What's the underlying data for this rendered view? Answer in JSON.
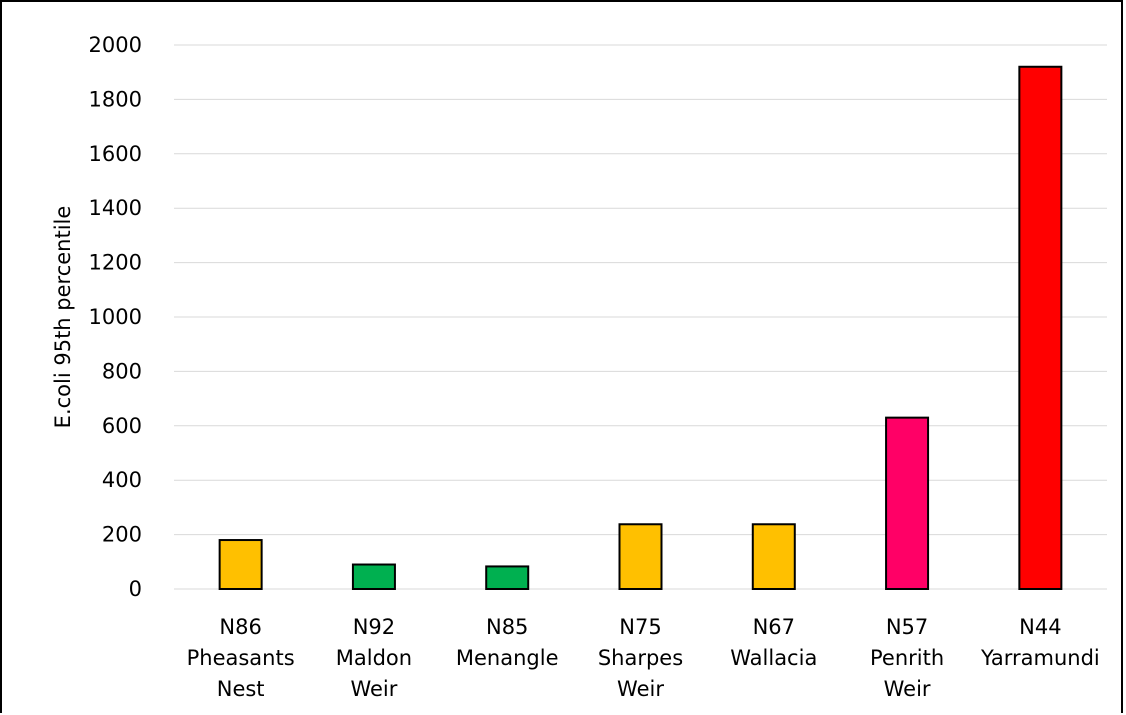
{
  "chart_data": {
    "type": "bar",
    "title": "",
    "xlabel": "",
    "ylabel": "E.coli 95th percentile",
    "ylim": [
      0,
      2000
    ],
    "yticks": [
      "0",
      "200",
      "400",
      "600",
      "800",
      "1000",
      "1200",
      "1400",
      "1600",
      "1800",
      "2000"
    ],
    "grid": true,
    "legend": "none",
    "categories": [
      [
        "N86",
        "Pheasants",
        "Nest"
      ],
      [
        "N92",
        "Maldon",
        "Weir"
      ],
      [
        "N85",
        "Menangle"
      ],
      [
        "N75",
        "Sharpes",
        "Weir"
      ],
      [
        "N67",
        "Wallacia"
      ],
      [
        "N57",
        "Penrith",
        "Weir"
      ],
      [
        "N44",
        "Yarramundi"
      ]
    ],
    "values": [
      180,
      90,
      83,
      238,
      238,
      630,
      1920
    ],
    "colors": [
      "#FFC000",
      "#00B050",
      "#00B050",
      "#FFC000",
      "#FFC000",
      "#FF0066",
      "#FF0000"
    ]
  }
}
